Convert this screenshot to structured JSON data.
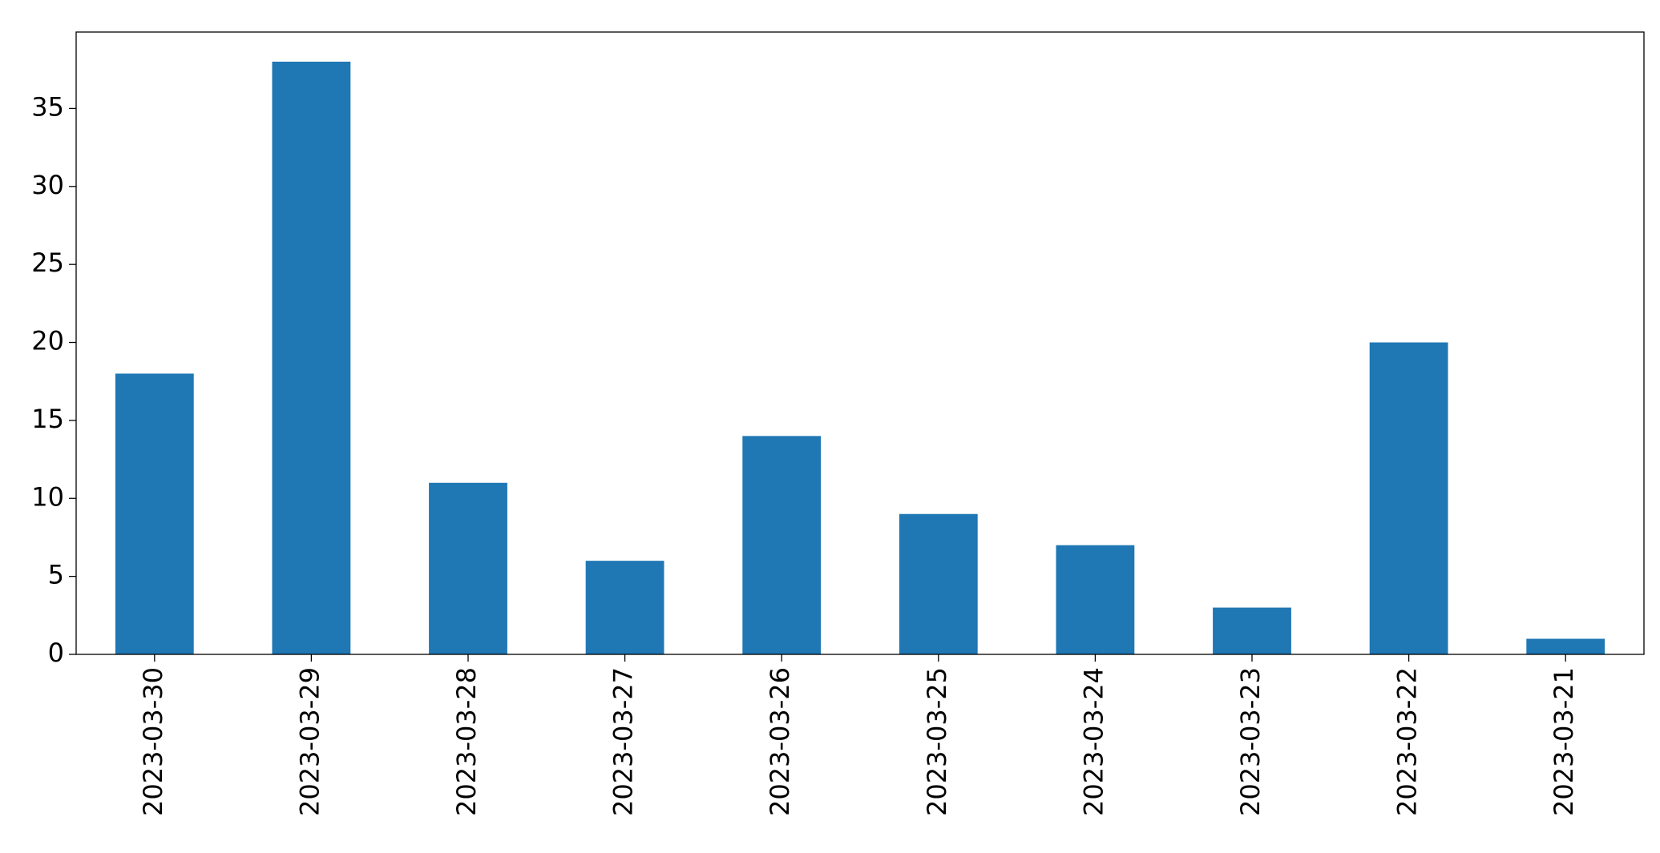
{
  "chart_data": {
    "type": "bar",
    "categories": [
      "2023-03-30",
      "2023-03-29",
      "2023-03-28",
      "2023-03-27",
      "2023-03-26",
      "2023-03-25",
      "2023-03-24",
      "2023-03-23",
      "2023-03-22",
      "2023-03-21"
    ],
    "values": [
      18,
      38,
      11,
      6,
      14,
      9,
      7,
      3,
      20,
      1
    ],
    "color": "#1f77b4",
    "ylim": [
      0,
      39.9
    ],
    "yticks": [
      0,
      5,
      10,
      15,
      20,
      25,
      30,
      35
    ],
    "grid": false
  }
}
